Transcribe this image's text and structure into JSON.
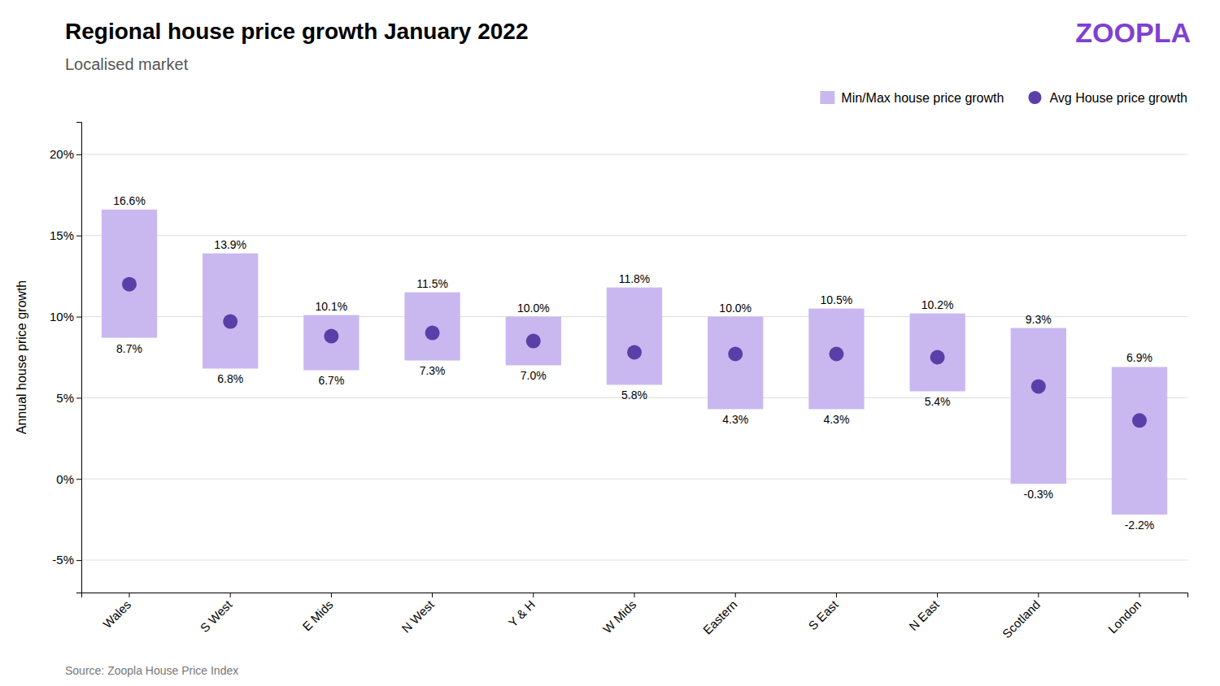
{
  "chart_data": {
    "type": "bar",
    "title": "Regional house price growth January 2022",
    "subtitle": "Localised market",
    "source": "Source: Zoopla  House Price Index",
    "ylabel": "Annual house price growth",
    "logo_text": "ZOOPLA",
    "logo_color": "#8040d0",
    "background_color": "#ffffff",
    "categories": [
      "Wales",
      "S West",
      "E Mids",
      "N West",
      "Y & H",
      "W Mids",
      "Eastern",
      "S East",
      "N East",
      "Scotland",
      "London"
    ],
    "series": [
      {
        "name": "Min/Max house price growth",
        "type": "range_bar",
        "color": "#c9b8f0",
        "min": [
          8.7,
          6.8,
          6.7,
          7.3,
          7.0,
          5.8,
          4.3,
          4.3,
          5.4,
          -0.3,
          -2.2
        ],
        "max": [
          16.6,
          13.9,
          10.1,
          11.5,
          10.0,
          11.8,
          10.0,
          10.5,
          10.2,
          9.3,
          6.9
        ],
        "min_labels": [
          "8.7%",
          "6.8%",
          "6.7%",
          "7.3%",
          "7.0%",
          "5.8%",
          "4.3%",
          "4.3%",
          "5.4%",
          "-0.3%",
          "-2.2%"
        ],
        "max_labels": [
          "16.6%",
          "13.9%",
          "10.1%",
          "11.5%",
          "10.0%",
          "11.8%",
          "10.0%",
          "10.5%",
          "10.2%",
          "9.3%",
          "6.9%"
        ]
      },
      {
        "name": "Avg House price growth",
        "type": "scatter",
        "color": "#5b3fa8",
        "marker": "circle",
        "values": [
          12.0,
          9.7,
          8.8,
          9.0,
          8.5,
          7.8,
          7.7,
          7.7,
          7.5,
          5.7,
          3.6
        ]
      }
    ],
    "data_labels": true,
    "ylim": [
      -7,
      22
    ],
    "yticks": [
      {
        "value": -5,
        "label": "-5%"
      },
      {
        "value": 0,
        "label": "0%"
      },
      {
        "value": 5,
        "label": "5%"
      },
      {
        "value": 10,
        "label": "10%"
      },
      {
        "value": 15,
        "label": "15%"
      },
      {
        "value": 20,
        "label": "20%"
      }
    ],
    "grid": true,
    "legend": "upper right"
  }
}
